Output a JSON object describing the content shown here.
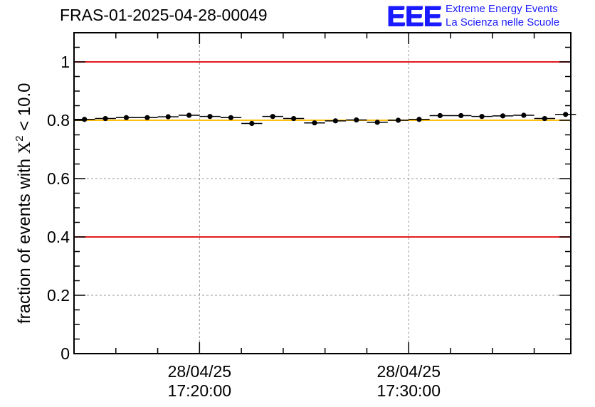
{
  "header": {
    "run_title": "FRAS-01-2025-04-28-00049",
    "logo_mark": "EEE",
    "logo_line1": "Extreme Energy Events",
    "logo_line2": "La Scienza nelle Scuole"
  },
  "chart_data": {
    "type": "scatter",
    "title": "FRAS-01-2025-04-28-00049",
    "ylabel_prefix": "fraction of events with ",
    "ylabel_symbol": "X",
    "ylabel_sup": "2",
    "ylabel_suffix": " < 10.0",
    "xlabel": "",
    "x_axis": "time",
    "ylim": [
      0,
      1.1
    ],
    "xlim_minutes": [
      0,
      23.75
    ],
    "y_ticks": [
      0,
      0.2,
      0.4,
      0.6,
      0.8,
      1
    ],
    "y_tick_labels": [
      "0",
      "0.2",
      "0.4",
      "0.6",
      "0.8",
      "1"
    ],
    "x_tick_labels": [
      {
        "minutes": 6,
        "date": "28/04/25",
        "time": "17:20:00"
      },
      {
        "minutes": 16,
        "date": "28/04/25",
        "time": "17:30:00"
      }
    ],
    "grid": true,
    "reference_lines": [
      {
        "y": 1.0,
        "color": "#e31a1c"
      },
      {
        "y": 0.4,
        "color": "#e31a1c"
      },
      {
        "y": 0.8,
        "color": "#ffc20e"
      }
    ],
    "bin_width_minutes": 1,
    "series": [
      {
        "x_minutes": [
          0.5,
          1.5,
          2.5,
          3.5,
          4.5,
          5.5,
          6.5,
          7.5,
          8.5,
          9.5,
          10.5,
          11.5,
          12.5,
          13.5,
          14.5,
          15.5,
          16.5,
          17.5,
          18.5,
          19.5,
          20.5,
          21.5,
          22.5
        ],
        "values": [
          0.803,
          0.806,
          0.809,
          0.809,
          0.812,
          0.817,
          0.813,
          0.809,
          0.789,
          0.813,
          0.806,
          0.791,
          0.798,
          0.801,
          0.793,
          0.8,
          0.803,
          0.816,
          0.816,
          0.813,
          0.815,
          0.817,
          0.806
        ],
        "color": "#000000"
      },
      {
        "x_minutes": [
          23.5
        ],
        "values": [
          0.82
        ],
        "color": "#000000"
      }
    ]
  }
}
